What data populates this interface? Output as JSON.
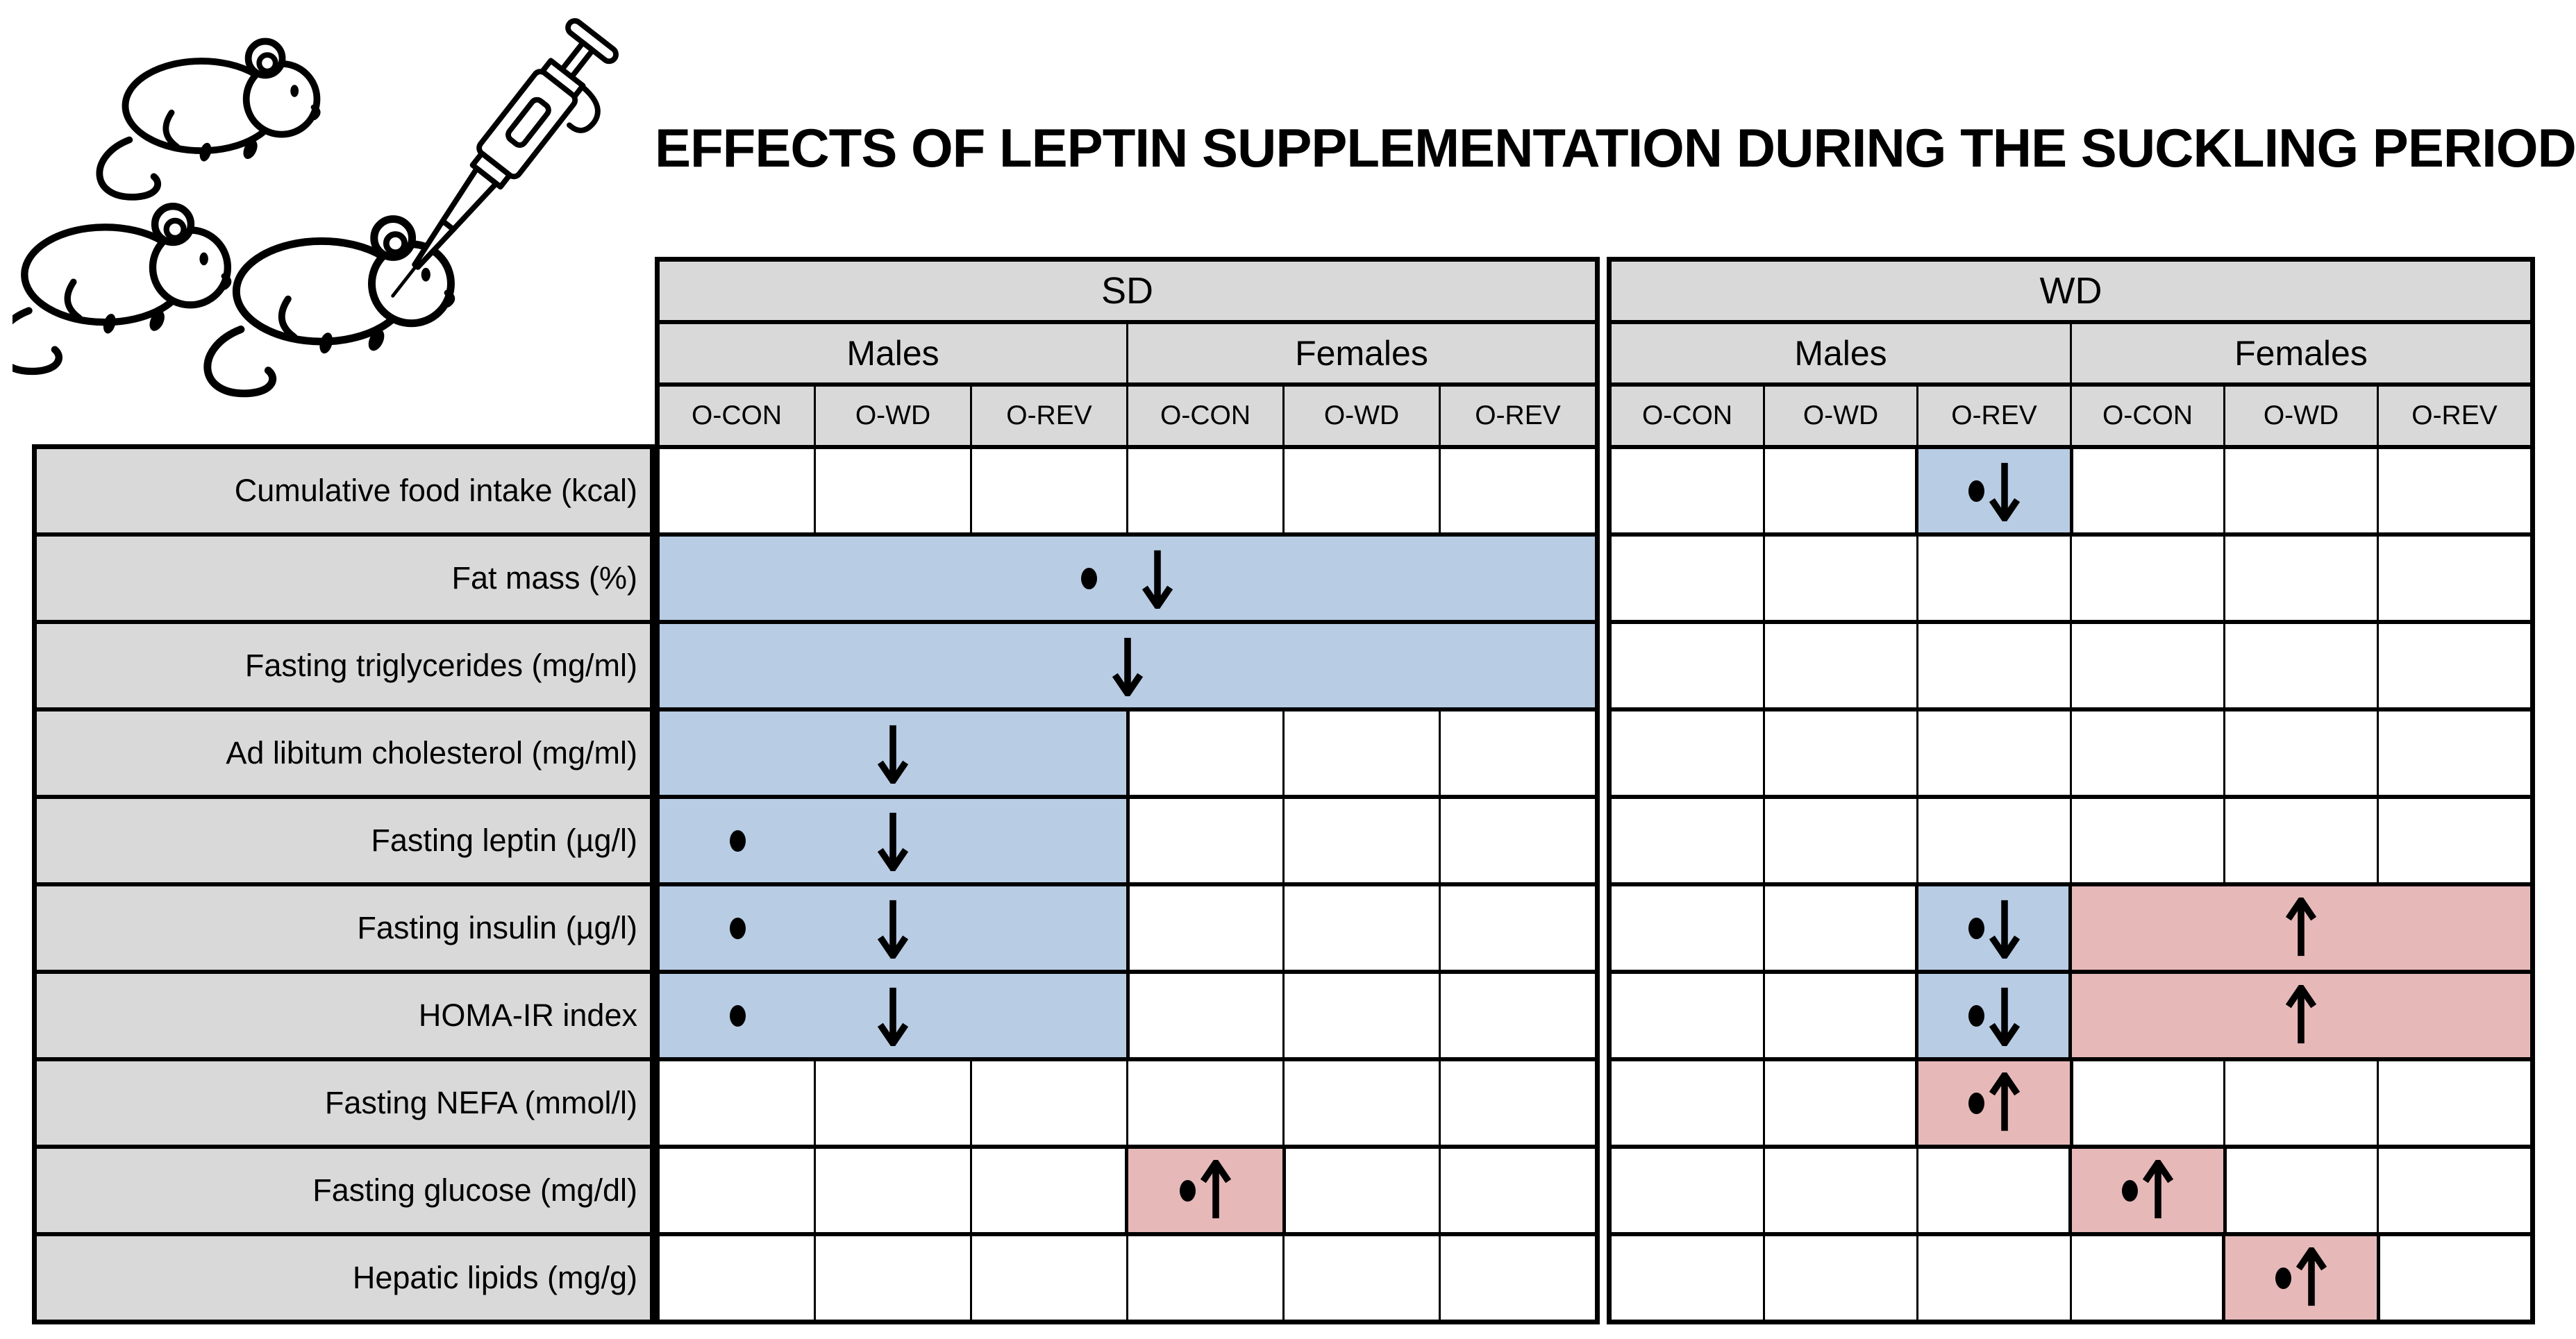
{
  "title": "EFFECTS OF LEPTIN SUPPLEMENTATION DURING THE SUCKLING PERIOD",
  "colors": {
    "header_bg": "#d9d9d9",
    "label_bg": "#d9d9d9",
    "decrease_bg": "#b8cce4",
    "increase_bg": "#e6b9b8",
    "cell_bg": "#ffffff",
    "border": "#000000",
    "marker": "#000000"
  },
  "icons": {
    "mice_illustration": "three-mice-with-micropipette",
    "down_arrow": "↓",
    "up_arrow": "↑",
    "dot": "•"
  },
  "table": {
    "sections": [
      {
        "id": "sd",
        "label": "SD",
        "groups": [
          {
            "label": "Males",
            "cols": [
              "O-CON",
              "O-WD",
              "O-REV"
            ]
          },
          {
            "label": "Females",
            "cols": [
              "O-CON",
              "O-WD",
              "O-REV"
            ]
          }
        ]
      },
      {
        "id": "wd",
        "label": "WD",
        "groups": [
          {
            "label": "Males",
            "cols": [
              "O-CON",
              "O-WD",
              "O-REV"
            ]
          },
          {
            "label": "Females",
            "cols": [
              "O-CON",
              "O-WD",
              "O-REV"
            ]
          }
        ]
      }
    ],
    "rows": [
      {
        "label": "Cumulative food intake (kcal)",
        "sd": [
          {
            "t": "w",
            "n": 6
          }
        ],
        "wd": [
          {
            "t": "w",
            "n": 2
          },
          {
            "t": "hl",
            "bg": "blue",
            "span": 1,
            "mode": "pair",
            "items": [
              "dot",
              "down"
            ],
            "gap": 6
          },
          {
            "t": "w",
            "n": 3
          }
        ]
      },
      {
        "label": "Fat mass (%)",
        "sd": [
          {
            "t": "hl",
            "bg": "blue",
            "span": 6,
            "mode": "pair",
            "items": [
              "dot",
              "down"
            ],
            "gap": 64
          }
        ],
        "wd": [
          {
            "t": "w",
            "n": 6
          }
        ]
      },
      {
        "label": "Fasting triglycerides (mg/ml)",
        "sd": [
          {
            "t": "hl",
            "bg": "blue",
            "span": 6,
            "mode": "pair",
            "items": [
              "down"
            ],
            "gap": 6
          }
        ],
        "wd": [
          {
            "t": "w",
            "n": 6
          }
        ]
      },
      {
        "label": "Ad libitum cholesterol (mg/ml)",
        "sd": [
          {
            "t": "hl",
            "bg": "blue",
            "span": 3,
            "mode": "sub",
            "items": [
              "",
              "down",
              ""
            ]
          },
          {
            "t": "w",
            "n": 3
          }
        ],
        "wd": [
          {
            "t": "w",
            "n": 6
          }
        ]
      },
      {
        "label": "Fasting leptin (µg/l)",
        "sd": [
          {
            "t": "hl",
            "bg": "blue",
            "span": 3,
            "mode": "sub",
            "items": [
              "dot",
              "down",
              ""
            ]
          },
          {
            "t": "w",
            "n": 3
          }
        ],
        "wd": [
          {
            "t": "w",
            "n": 6
          }
        ]
      },
      {
        "label": "Fasting insulin (µg/l)",
        "sd": [
          {
            "t": "hl",
            "bg": "blue",
            "span": 3,
            "mode": "sub",
            "items": [
              "dot",
              "down",
              ""
            ]
          },
          {
            "t": "w",
            "n": 3
          }
        ],
        "wd": [
          {
            "t": "w",
            "n": 2
          },
          {
            "t": "hl",
            "bg": "blue",
            "span": 1,
            "mode": "pair",
            "items": [
              "dot",
              "down"
            ],
            "gap": 6
          },
          {
            "t": "hl",
            "bg": "pink",
            "span": 3,
            "mode": "pair",
            "items": [
              "up"
            ],
            "gap": 6
          }
        ]
      },
      {
        "label": "HOMA-IR index",
        "sd": [
          {
            "t": "hl",
            "bg": "blue",
            "span": 3,
            "mode": "sub",
            "items": [
              "dot",
              "down",
              ""
            ]
          },
          {
            "t": "w",
            "n": 3
          }
        ],
        "wd": [
          {
            "t": "w",
            "n": 2
          },
          {
            "t": "hl",
            "bg": "blue",
            "span": 1,
            "mode": "pair",
            "items": [
              "dot",
              "down"
            ],
            "gap": 6
          },
          {
            "t": "hl",
            "bg": "pink",
            "span": 3,
            "mode": "pair",
            "items": [
              "up"
            ],
            "gap": 6
          }
        ]
      },
      {
        "label": "Fasting NEFA (mmol/l)",
        "sd": [
          {
            "t": "w",
            "n": 6
          }
        ],
        "wd": [
          {
            "t": "w",
            "n": 2
          },
          {
            "t": "hl",
            "bg": "pink",
            "span": 1,
            "mode": "pair",
            "items": [
              "dot",
              "up"
            ],
            "gap": 6
          },
          {
            "t": "w",
            "n": 3
          }
        ]
      },
      {
        "label": "Fasting glucose (mg/dl)",
        "sd": [
          {
            "t": "w",
            "n": 3
          },
          {
            "t": "hl",
            "bg": "pink",
            "span": 1,
            "mode": "pair",
            "items": [
              "dot",
              "up"
            ],
            "gap": 6
          },
          {
            "t": "w",
            "n": 2
          }
        ],
        "wd": [
          {
            "t": "w",
            "n": 3
          },
          {
            "t": "hl",
            "bg": "pink",
            "span": 1,
            "mode": "pair",
            "items": [
              "dot",
              "up"
            ],
            "gap": 6
          },
          {
            "t": "w",
            "n": 2
          }
        ]
      },
      {
        "label": "Hepatic lipids (mg/g)",
        "sd": [
          {
            "t": "w",
            "n": 6
          }
        ],
        "wd": [
          {
            "t": "w",
            "n": 4
          },
          {
            "t": "hl",
            "bg": "pink",
            "span": 1,
            "mode": "pair",
            "items": [
              "dot",
              "up"
            ],
            "gap": 6
          },
          {
            "t": "w",
            "n": 1
          }
        ]
      }
    ]
  }
}
